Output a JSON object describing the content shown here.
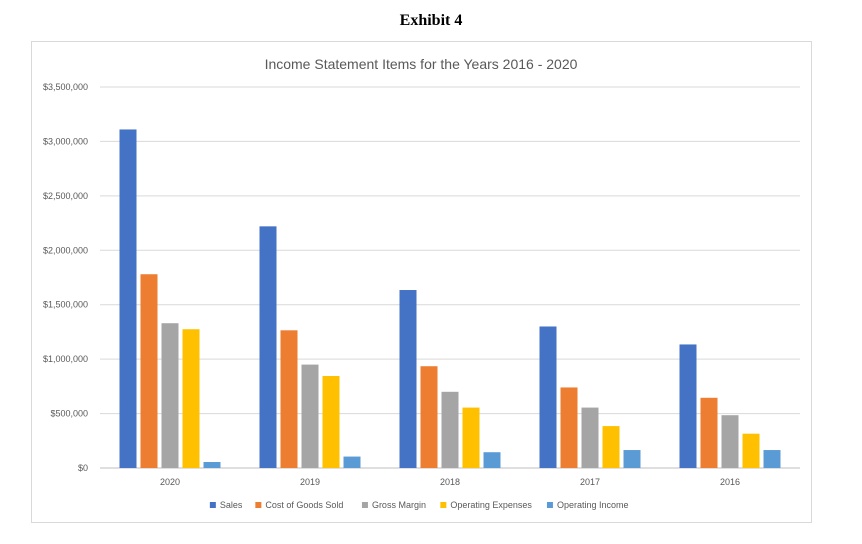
{
  "exhibit_title": "Exhibit 4",
  "chart_data": {
    "type": "bar",
    "title": "Income Statement Items for the Years 2016 - 2020",
    "categories": [
      "2020",
      "2019",
      "2018",
      "2017",
      "2016"
    ],
    "ylim": [
      0,
      3500000
    ],
    "yticks": [
      0,
      500000,
      1000000,
      1500000,
      2000000,
      2500000,
      3000000,
      3500000
    ],
    "ytick_labels": [
      "$0",
      "$500,000",
      "$1,000,000",
      "$1,500,000",
      "$2,000,000",
      "$2,500,000",
      "$3,000,000",
      "$3,500,000"
    ],
    "grid": true,
    "legend_position": "bottom",
    "series": [
      {
        "name": "Sales",
        "color": "#4472C4",
        "values": [
          3110000,
          2220000,
          1635000,
          1300000,
          1135000
        ]
      },
      {
        "name": "Cost of Goods Sold",
        "color": "#ED7D31",
        "values": [
          1780000,
          1265000,
          935000,
          740000,
          645000
        ]
      },
      {
        "name": "Gross Margin",
        "color": "#A5A5A5",
        "values": [
          1330000,
          950000,
          700000,
          555000,
          485000
        ]
      },
      {
        "name": "Operating Expenses",
        "color": "#FFC000",
        "values": [
          1275000,
          845000,
          555000,
          385000,
          315000
        ]
      },
      {
        "name": "Operating Income",
        "color": "#5B9BD5",
        "values": [
          55000,
          105000,
          145000,
          165000,
          165000
        ]
      }
    ]
  }
}
